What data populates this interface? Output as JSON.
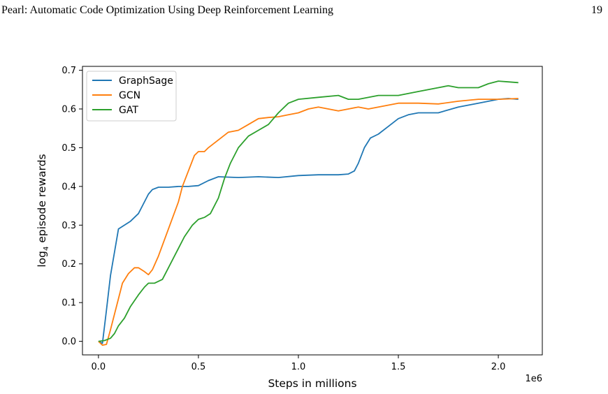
{
  "header": {
    "title": "Pearl: Automatic Code Optimization Using Deep Reinforcement Learning",
    "page_number": "19"
  },
  "chart_data": {
    "type": "line",
    "title": "",
    "xlabel": "Steps in millions",
    "ylabel": {
      "prefix": "log",
      "subscript": "4",
      "suffix": " episode rewards"
    },
    "x_offset_label": "1e6",
    "xlim": [
      -80000,
      2220000
    ],
    "ylim": [
      -0.035,
      0.71
    ],
    "xticks": [
      0,
      500000,
      1000000,
      1500000,
      2000000
    ],
    "xtick_labels": [
      "0.0",
      "0.5",
      "1.0",
      "1.5",
      "2.0"
    ],
    "yticks": [
      0.0,
      0.1,
      0.2,
      0.3,
      0.4,
      0.5,
      0.6,
      0.7
    ],
    "ytick_labels": [
      "0.0",
      "0.1",
      "0.2",
      "0.3",
      "0.4",
      "0.5",
      "0.6",
      "0.7"
    ],
    "grid": false,
    "legend_position": "top-left",
    "series": [
      {
        "name": "GraphSage",
        "color": "#1f77b4",
        "x": [
          0,
          20000,
          40000,
          60000,
          80000,
          100000,
          130000,
          160000,
          180000,
          200000,
          220000,
          250000,
          270000,
          300000,
          350000,
          400000,
          450000,
          500000,
          550000,
          600000,
          700000,
          800000,
          900000,
          1000000,
          1100000,
          1200000,
          1250000,
          1280000,
          1300000,
          1330000,
          1360000,
          1400000,
          1450000,
          1500000,
          1550000,
          1600000,
          1700000,
          1800000,
          1900000,
          2000000,
          2050000,
          2100000
        ],
        "y": [
          0.0,
          -0.005,
          0.08,
          0.17,
          0.23,
          0.29,
          0.3,
          0.31,
          0.32,
          0.33,
          0.35,
          0.38,
          0.392,
          0.398,
          0.398,
          0.4,
          0.4,
          0.402,
          0.415,
          0.425,
          0.423,
          0.425,
          0.423,
          0.428,
          0.43,
          0.43,
          0.432,
          0.44,
          0.46,
          0.5,
          0.525,
          0.535,
          0.555,
          0.575,
          0.585,
          0.59,
          0.59,
          0.605,
          0.615,
          0.625,
          0.627,
          0.625
        ]
      },
      {
        "name": "GCN",
        "color": "#ff7f0e",
        "x": [
          0,
          20000,
          40000,
          60000,
          80000,
          100000,
          120000,
          150000,
          180000,
          200000,
          230000,
          250000,
          270000,
          300000,
          350000,
          400000,
          420000,
          450000,
          480000,
          500000,
          530000,
          550000,
          600000,
          650000,
          700000,
          750000,
          800000,
          850000,
          900000,
          950000,
          1000000,
          1050000,
          1100000,
          1150000,
          1200000,
          1250000,
          1300000,
          1350000,
          1400000,
          1500000,
          1600000,
          1700000,
          1800000,
          1900000,
          2000000,
          2100000
        ],
        "y": [
          0.0,
          -0.01,
          -0.008,
          0.03,
          0.07,
          0.11,
          0.15,
          0.175,
          0.19,
          0.19,
          0.18,
          0.172,
          0.185,
          0.22,
          0.29,
          0.36,
          0.4,
          0.44,
          0.48,
          0.49,
          0.49,
          0.5,
          0.52,
          0.54,
          0.545,
          0.56,
          0.575,
          0.578,
          0.58,
          0.585,
          0.59,
          0.6,
          0.605,
          0.6,
          0.595,
          0.6,
          0.605,
          0.6,
          0.605,
          0.615,
          0.615,
          0.613,
          0.62,
          0.625,
          0.625,
          0.627
        ]
      },
      {
        "name": "GAT",
        "color": "#2ca02c",
        "x": [
          0,
          30000,
          60000,
          80000,
          100000,
          130000,
          160000,
          200000,
          230000,
          250000,
          280000,
          320000,
          350000,
          400000,
          430000,
          470000,
          500000,
          530000,
          560000,
          600000,
          630000,
          660000,
          700000,
          750000,
          800000,
          850000,
          900000,
          950000,
          1000000,
          1100000,
          1200000,
          1250000,
          1300000,
          1400000,
          1500000,
          1600000,
          1700000,
          1750000,
          1800000,
          1900000,
          1950000,
          2000000,
          2050000,
          2100000
        ],
        "y": [
          0.0,
          0.002,
          0.008,
          0.02,
          0.04,
          0.06,
          0.09,
          0.12,
          0.14,
          0.15,
          0.15,
          0.16,
          0.19,
          0.24,
          0.27,
          0.3,
          0.315,
          0.32,
          0.33,
          0.37,
          0.42,
          0.46,
          0.5,
          0.53,
          0.545,
          0.56,
          0.59,
          0.615,
          0.625,
          0.63,
          0.635,
          0.625,
          0.625,
          0.635,
          0.635,
          0.645,
          0.655,
          0.66,
          0.655,
          0.655,
          0.665,
          0.672,
          0.67,
          0.668
        ]
      }
    ]
  }
}
